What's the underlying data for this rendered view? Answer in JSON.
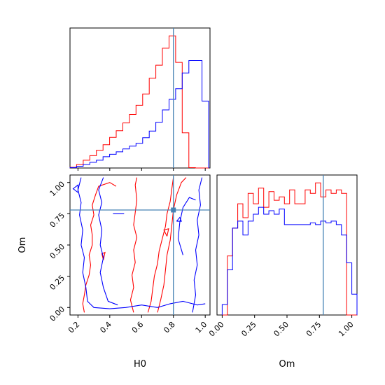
{
  "chart_data": {
    "type": "corner",
    "parameters": [
      "H0",
      "Om"
    ],
    "xlabel": "H0",
    "ylabel": "Om",
    "colors": {
      "red": "#ff0000",
      "blue": "#0000ff",
      "truth": "#4682b4"
    },
    "truth": {
      "H0": 0.8,
      "Om": 0.78
    },
    "hist_H0": {
      "edges": [
        0.15,
        0.1915,
        0.233,
        0.2745,
        0.316,
        0.3575,
        0.399,
        0.4405,
        0.482,
        0.5235,
        0.565,
        0.6065,
        0.648,
        0.6895,
        0.731,
        0.7725,
        0.814,
        0.8555,
        0.897,
        0.9385,
        0.98,
        1.0215
      ],
      "series": [
        {
          "color": "red",
          "values": [
            0.2,
            1.0,
            2.2,
            3.5,
            5.0,
            6.6,
            8.7,
            10.6,
            12.8,
            15.2,
            17.8,
            21.0,
            25.5,
            29.2,
            34.0,
            37.5,
            30.0,
            10.0,
            0.1,
            0,
            0
          ]
        },
        {
          "color": "blue",
          "values": [
            0.1,
            0.5,
            1.0,
            1.6,
            2.2,
            3.2,
            3.9,
            4.6,
            5.4,
            6.2,
            7.0,
            8.6,
            10.5,
            13.0,
            16.5,
            19.5,
            22.5,
            27.0,
            30.5,
            30.5,
            19.0
          ]
        }
      ]
    },
    "hist_Om": {
      "edges": [
        0,
        0.04,
        0.08,
        0.12,
        0.16,
        0.2,
        0.24,
        0.28,
        0.32,
        0.36,
        0.4,
        0.44,
        0.48,
        0.52,
        0.56,
        0.6,
        0.64,
        0.68,
        0.72,
        0.76,
        0.8,
        0.84,
        0.88,
        0.92,
        0.96,
        1.0,
        1.04
      ],
      "series": [
        {
          "color": "red",
          "values": [
            0,
            17.0,
            25.0,
            32.0,
            28.0,
            35.0,
            32.0,
            36.5,
            31.0,
            35.5,
            33.0,
            34.0,
            32.0,
            36.0,
            32.0,
            32.0,
            36.0,
            35.0,
            38.0,
            34.0,
            36.0,
            35.0,
            36.0,
            35.0,
            0,
            0
          ]
        },
        {
          "color": "blue",
          "values": [
            3.0,
            13.0,
            25.0,
            27.0,
            23.0,
            27.0,
            29.0,
            31.0,
            29.0,
            30.0,
            29.0,
            30.5,
            26.0,
            26.0,
            26.0,
            26.0,
            26.0,
            26.5,
            26.0,
            27.0,
            26.5,
            27.0,
            26.0,
            23.0,
            15.0,
            6.0
          ]
        }
      ]
    },
    "contours": [
      {
        "color": "red",
        "paths": [
          [
            [
              0.24,
              -0.04
            ],
            [
              0.23,
              0.03
            ],
            [
              0.24,
              0.1
            ],
            [
              0.25,
              0.18
            ],
            [
              0.27,
              0.26
            ],
            [
              0.28,
              0.34
            ],
            [
              0.27,
              0.42
            ],
            [
              0.29,
              0.5
            ],
            [
              0.29,
              0.58
            ],
            [
              0.28,
              0.66
            ],
            [
              0.3,
              0.74
            ],
            [
              0.29,
              0.82
            ],
            [
              0.31,
              0.9
            ],
            [
              0.33,
              0.97
            ],
            [
              0.4,
              1.0
            ],
            [
              0.44,
              0.97
            ]
          ],
          [
            [
              0.55,
              -0.04
            ],
            [
              0.53,
              0.06
            ],
            [
              0.55,
              0.16
            ],
            [
              0.54,
              0.26
            ],
            [
              0.56,
              0.36
            ],
            [
              0.55,
              0.46
            ],
            [
              0.57,
              0.56
            ],
            [
              0.55,
              0.66
            ],
            [
              0.56,
              0.76
            ],
            [
              0.57,
              0.86
            ],
            [
              0.56,
              0.98
            ],
            [
              0.57,
              1.04
            ]
          ],
          [
            [
              0.64,
              -0.04
            ],
            [
              0.66,
              0.05
            ],
            [
              0.67,
              0.15
            ],
            [
              0.68,
              0.25
            ],
            [
              0.7,
              0.35
            ],
            [
              0.71,
              0.45
            ],
            [
              0.73,
              0.55
            ],
            [
              0.75,
              0.65
            ],
            [
              0.76,
              0.75
            ],
            [
              0.78,
              0.85
            ],
            [
              0.79,
              0.95
            ],
            [
              0.8,
              1.04
            ]
          ],
          [
            [
              0.7,
              -0.04
            ],
            [
              0.72,
              0.06
            ],
            [
              0.74,
              0.18
            ],
            [
              0.75,
              0.3
            ],
            [
              0.76,
              0.42
            ],
            [
              0.78,
              0.54
            ],
            [
              0.79,
              0.66
            ],
            [
              0.8,
              0.78
            ],
            [
              0.82,
              0.9
            ],
            [
              0.85,
              1.0
            ],
            [
              0.88,
              1.04
            ]
          ],
          [
            [
              0.36,
              0.38
            ],
            [
              0.35,
              0.43
            ],
            [
              0.37,
              0.44
            ],
            [
              0.36,
              0.38
            ]
          ],
          [
            [
              0.76,
              0.57
            ],
            [
              0.74,
              0.62
            ],
            [
              0.77,
              0.63
            ],
            [
              0.76,
              0.57
            ]
          ]
        ]
      },
      {
        "color": "blue",
        "paths": [
          [
            [
              0.22,
              1.04
            ],
            [
              0.2,
              0.94
            ],
            [
              0.22,
              0.84
            ],
            [
              0.21,
              0.74
            ],
            [
              0.23,
              0.62
            ],
            [
              0.22,
              0.5
            ],
            [
              0.24,
              0.4
            ],
            [
              0.23,
              0.28
            ],
            [
              0.25,
              0.16
            ],
            [
              0.26,
              0.05
            ],
            [
              0.3,
              0.0
            ],
            [
              0.4,
              -0.01
            ],
            [
              0.5,
              0.0
            ],
            [
              0.6,
              0.02
            ],
            [
              0.7,
              0.0
            ],
            [
              0.78,
              0.03
            ],
            [
              0.86,
              0.05
            ],
            [
              0.95,
              0.02
            ],
            [
              1.0,
              0.03
            ]
          ],
          [
            [
              0.36,
              1.04
            ],
            [
              0.33,
              0.94
            ],
            [
              0.35,
              0.84
            ],
            [
              0.33,
              0.74
            ],
            [
              0.35,
              0.62
            ],
            [
              0.34,
              0.5
            ],
            [
              0.36,
              0.4
            ],
            [
              0.34,
              0.28
            ],
            [
              0.36,
              0.16
            ],
            [
              0.39,
              0.05
            ],
            [
              0.45,
              0.02
            ]
          ],
          [
            [
              0.92,
              -0.04
            ],
            [
              0.94,
              0.1
            ],
            [
              0.93,
              0.22
            ],
            [
              0.95,
              0.34
            ],
            [
              0.94,
              0.46
            ],
            [
              0.96,
              0.58
            ],
            [
              0.95,
              0.7
            ],
            [
              0.97,
              0.82
            ],
            [
              0.96,
              0.94
            ],
            [
              0.98,
              1.04
            ]
          ],
          [
            [
              0.86,
              0.42
            ],
            [
              0.83,
              0.55
            ],
            [
              0.84,
              0.68
            ],
            [
              0.86,
              0.8
            ],
            [
              0.9,
              0.88
            ],
            [
              0.94,
              0.86
            ]
          ],
          [
            [
              0.2,
              0.92
            ],
            [
              0.17,
              0.95
            ],
            [
              0.2,
              0.98
            ],
            [
              0.2,
              0.92
            ]
          ],
          [
            [
              0.42,
              0.75
            ],
            [
              0.49,
              0.75
            ]
          ],
          [
            [
              0.82,
              0.69
            ],
            [
              0.84,
              0.72
            ],
            [
              0.85,
              0.69
            ],
            [
              0.82,
              0.69
            ]
          ]
        ]
      }
    ],
    "panels": {
      "h0_hist": {
        "xlim": [
          0.15,
          1.03
        ]
      },
      "om_hist": {
        "xlim": [
          -0.04,
          1.04
        ]
      },
      "h0_om": {
        "xlim": [
          0.15,
          1.03
        ],
        "ylim": [
          -0.06,
          1.06
        ]
      }
    },
    "ticks": {
      "H0": [
        "0.2",
        "0.4",
        "0.6",
        "0.8",
        "1.0"
      ],
      "Om": [
        "0.00",
        "0.25",
        "0.50",
        "0.75",
        "1.00"
      ]
    }
  }
}
